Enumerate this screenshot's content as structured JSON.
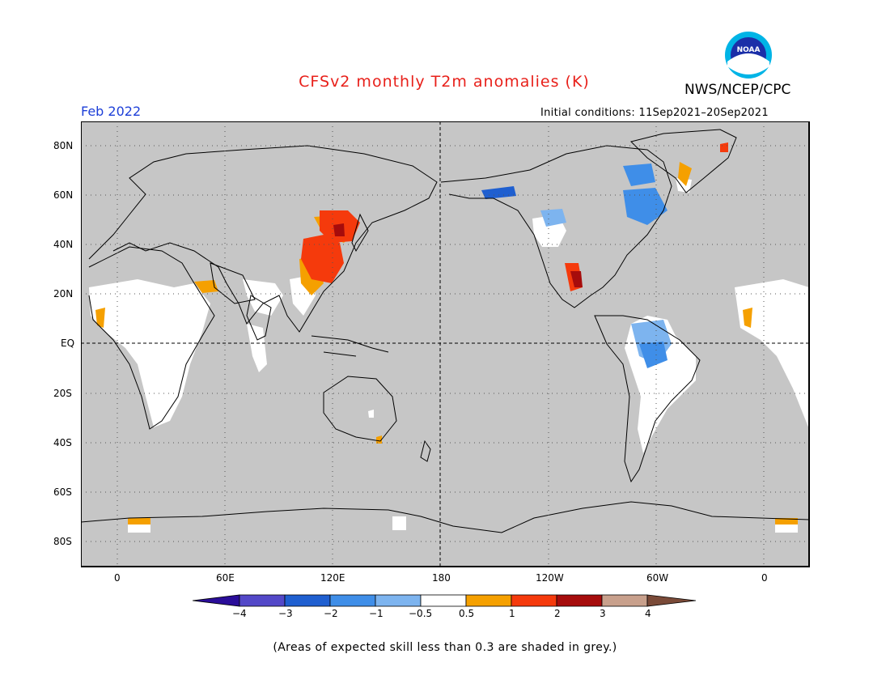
{
  "title": "CFSv2 monthly T2m anomalies (K)",
  "organization": "NWS/NCEP/CPC",
  "logo_text": "NOAA",
  "valid_month": "Feb 2022",
  "initial_conditions": "Initial conditions: 11Sep2021–20Sep2021",
  "footnote": "(Areas of expected skill less than 0.3 are shaded in grey.)",
  "colors": {
    "skill_mask_grey": "#c6c6c6",
    "ocean_grey": "#c6c6c6",
    "neutral_white": "#ffffff",
    "title_red": "#e8201a",
    "month_blue": "#1d3fd8"
  },
  "map": {
    "projection": "cylindrical equidistant",
    "lon_range": [
      -20,
      380
    ],
    "lat_range": [
      -90,
      90
    ],
    "lat_labels": [
      "80N",
      "60N",
      "40N",
      "20N",
      "EQ",
      "20S",
      "40S",
      "60S",
      "80S"
    ],
    "lon_labels": [
      "0",
      "60E",
      "120E",
      "180",
      "120W",
      "60W",
      "0"
    ],
    "grid": "dotted"
  },
  "colorbar": {
    "boundaries": [
      "−4",
      "−3",
      "−2",
      "−1",
      "−0.5",
      "0.5",
      "1",
      "2",
      "3",
      "4"
    ],
    "colors": [
      "#2a0d99",
      "#5348c8",
      "#1f5fd0",
      "#3f8ee8",
      "#7db4ef",
      "#ffffff",
      "#f5a000",
      "#f53a0c",
      "#a60c0c",
      "#c8a08c",
      "#7a4a38"
    ]
  }
}
